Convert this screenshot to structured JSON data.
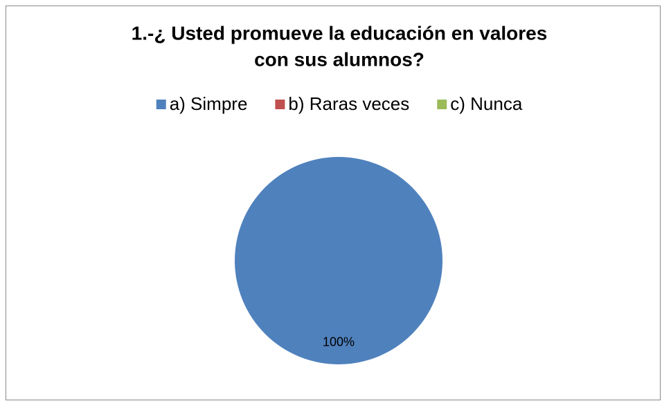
{
  "chart_data": {
    "type": "pie",
    "title": [
      "1.-¿ Usted promueve la educación en valores",
      "con sus alumnos?"
    ],
    "categories": [
      "a) Simpre",
      "b) Raras veces",
      "c) Nunca"
    ],
    "values": [
      100,
      0,
      0
    ],
    "value_labels": [
      "100%",
      null,
      null
    ],
    "colors": [
      "#4f81bd",
      "#c0504d",
      "#9bbb59"
    ],
    "legend": "top"
  }
}
